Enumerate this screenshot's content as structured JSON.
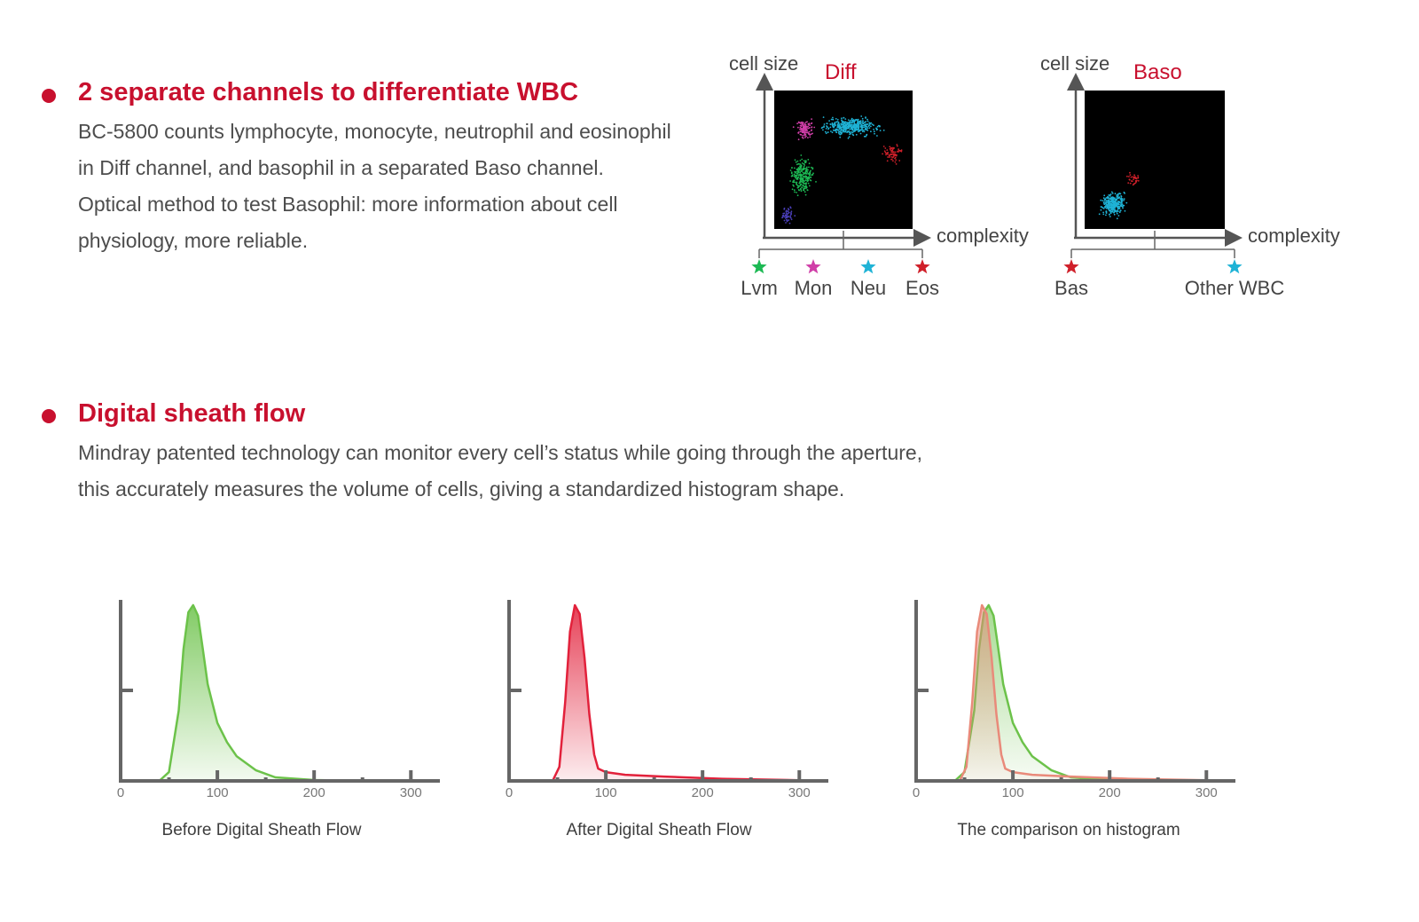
{
  "section1": {
    "heading": "2 separate channels to differentiate WBC",
    "lines": [
      "BC-5800 counts lymphocyte, monocyte, neutrophil and eosinophil",
      "in Diff channel, and basophil in a separated Baso channel.",
      "Optical method to test Basophil: more information about cell",
      "physiology, more reliable."
    ]
  },
  "section2": {
    "heading": "Digital sheath flow",
    "lines": [
      "Mindray patented technology can monitor every cell’s status while going through the aperture,",
      "this accurately measures the volume of cells, giving a standardized histogram shape."
    ]
  },
  "colors": {
    "accent": "#c8102e",
    "lym": "#1db954",
    "mon": "#d03fa8",
    "neu": "#1fb3d6",
    "eos": "#d0202a",
    "before": "#6cc24a",
    "after": "#e2213b",
    "comparison": "#b07a3c"
  },
  "chart_data": [
    {
      "type": "scatter",
      "title": "Diff",
      "ylabel": "cell size",
      "xlabel": "complexity",
      "legend": [
        {
          "label": "Lvm",
          "color": "#1db954",
          "icon": "star-icon"
        },
        {
          "label": "Mon",
          "color": "#d03fa8",
          "icon": "star-icon"
        },
        {
          "label": "Neu",
          "color": "#1fb3d6",
          "icon": "star-icon"
        },
        {
          "label": "Eos",
          "color": "#d0202a",
          "icon": "star-icon"
        }
      ],
      "clusters": [
        {
          "color": "#1db954",
          "x": 0.2,
          "y": 0.38,
          "sx": 0.05,
          "sy": 0.08,
          "n": 260
        },
        {
          "color": "#d03fa8",
          "x": 0.22,
          "y": 0.72,
          "sx": 0.04,
          "sy": 0.04,
          "n": 120
        },
        {
          "color": "#1fb3d6",
          "x": 0.55,
          "y": 0.74,
          "sx": 0.12,
          "sy": 0.04,
          "n": 420
        },
        {
          "color": "#d0202a",
          "x": 0.85,
          "y": 0.55,
          "sx": 0.05,
          "sy": 0.04,
          "n": 70
        },
        {
          "color": "#4a3fb8",
          "x": 0.1,
          "y": 0.1,
          "sx": 0.03,
          "sy": 0.04,
          "n": 50
        }
      ]
    },
    {
      "type": "scatter",
      "title": "Baso",
      "ylabel": "cell size",
      "xlabel": "complexity",
      "legend": [
        {
          "label": "Bas",
          "color": "#d0202a",
          "icon": "star-icon"
        },
        {
          "label": "Other WBC",
          "color": "#1fb3d6",
          "icon": "star-icon"
        }
      ],
      "clusters": [
        {
          "color": "#1fb3d6",
          "x": 0.2,
          "y": 0.18,
          "sx": 0.05,
          "sy": 0.05,
          "n": 320
        },
        {
          "color": "#d0202a",
          "x": 0.35,
          "y": 0.36,
          "sx": 0.03,
          "sy": 0.03,
          "n": 35
        }
      ]
    },
    {
      "type": "area",
      "caption": "Before Digital Sheath Flow",
      "xticks": [
        0,
        100,
        200,
        300
      ],
      "xlim": [
        0,
        330
      ],
      "ylim": [
        0,
        1
      ],
      "series": [
        {
          "color": "#6cc24a",
          "x": [
            0,
            40,
            50,
            60,
            65,
            70,
            75,
            80,
            85,
            90,
            100,
            110,
            120,
            140,
            160,
            200,
            250,
            330
          ],
          "y": [
            0,
            0,
            0.05,
            0.4,
            0.75,
            0.96,
            1.0,
            0.94,
            0.75,
            0.55,
            0.33,
            0.22,
            0.14,
            0.06,
            0.02,
            0.005,
            0,
            0
          ]
        }
      ]
    },
    {
      "type": "area",
      "caption": "After Digital Sheath Flow",
      "xticks": [
        0,
        100,
        200,
        300
      ],
      "xlim": [
        0,
        330
      ],
      "ylim": [
        0,
        1
      ],
      "series": [
        {
          "color": "#e2213b",
          "x": [
            0,
            45,
            52,
            58,
            63,
            68,
            73,
            78,
            83,
            88,
            92,
            100,
            120,
            160,
            220,
            300,
            330
          ],
          "y": [
            0,
            0,
            0.08,
            0.45,
            0.85,
            1.0,
            0.95,
            0.7,
            0.38,
            0.15,
            0.07,
            0.05,
            0.035,
            0.025,
            0.012,
            0.004,
            0
          ]
        }
      ]
    },
    {
      "type": "area",
      "caption": "The comparison on histogram",
      "xticks": [
        0,
        100,
        200,
        300
      ],
      "xlim": [
        0,
        330
      ],
      "ylim": [
        0,
        1
      ],
      "series": [
        {
          "color": "#6cc24a",
          "x": [
            0,
            40,
            50,
            60,
            65,
            70,
            75,
            80,
            85,
            90,
            100,
            110,
            120,
            140,
            160,
            200,
            250,
            330
          ],
          "y": [
            0,
            0,
            0.05,
            0.4,
            0.75,
            0.96,
            1.0,
            0.94,
            0.75,
            0.55,
            0.33,
            0.22,
            0.14,
            0.06,
            0.02,
            0.005,
            0,
            0
          ]
        },
        {
          "color": "#e98a7a",
          "x": [
            0,
            45,
            52,
            58,
            63,
            68,
            73,
            78,
            83,
            88,
            92,
            100,
            120,
            160,
            220,
            300,
            330
          ],
          "y": [
            0,
            0,
            0.08,
            0.45,
            0.85,
            1.0,
            0.95,
            0.7,
            0.38,
            0.15,
            0.07,
            0.05,
            0.035,
            0.025,
            0.012,
            0.004,
            0
          ]
        }
      ]
    }
  ]
}
